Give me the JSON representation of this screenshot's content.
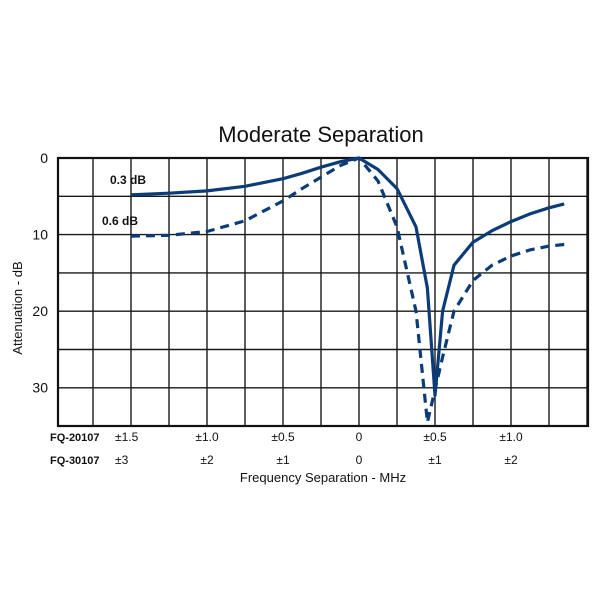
{
  "chart_data": {
    "type": "line",
    "title": "Moderate Separation",
    "xlabel": "Frequency Separation - MHz",
    "ylabel": "Attenuation - dB",
    "y_inverted": true,
    "ylim": [
      0,
      35
    ],
    "yticks": [
      "0",
      "10",
      "20",
      "30"
    ],
    "yticks_values": [
      0,
      10,
      20,
      30
    ],
    "grid": true,
    "x_scale_rows": [
      {
        "label": "FQ-20107",
        "ticks": [
          "±1.5",
          "±1.0",
          "±0.5",
          "0",
          "±0.5",
          "±1.0"
        ],
        "values": [
          -1.5,
          -1.0,
          -0.5,
          0,
          0.5,
          1.0
        ]
      },
      {
        "label": "FQ-30107",
        "ticks": [
          "±3",
          "±2",
          "±1",
          "0",
          "±1",
          "±2"
        ],
        "values": [
          -3,
          -2,
          -1,
          0,
          1,
          2
        ]
      }
    ],
    "xlim_row1": [
      -1.5,
      1.35
    ],
    "series": [
      {
        "name": "0.3 dB",
        "style": "solid",
        "color": "#0b3c78",
        "points": [
          [
            -1.5,
            4.8
          ],
          [
            -1.25,
            4.6
          ],
          [
            -1.0,
            4.3
          ],
          [
            -0.75,
            3.7
          ],
          [
            -0.5,
            2.7
          ],
          [
            -0.375,
            2.0
          ],
          [
            -0.25,
            1.2
          ],
          [
            -0.125,
            0.5
          ],
          [
            0.0,
            0.0
          ],
          [
            0.125,
            1.5
          ],
          [
            0.25,
            4.0
          ],
          [
            0.375,
            9.0
          ],
          [
            0.45,
            17.0
          ],
          [
            0.5,
            31.0
          ],
          [
            0.55,
            20.0
          ],
          [
            0.625,
            14.0
          ],
          [
            0.75,
            11.0
          ],
          [
            0.875,
            9.5
          ],
          [
            1.0,
            8.3
          ],
          [
            1.125,
            7.3
          ],
          [
            1.25,
            6.5
          ],
          [
            1.35,
            6.0
          ]
        ]
      },
      {
        "name": "0.6 dB",
        "style": "dashed",
        "color": "#0b3c78",
        "points": [
          [
            -1.5,
            10.2
          ],
          [
            -1.25,
            10.1
          ],
          [
            -1.0,
            9.6
          ],
          [
            -0.75,
            8.2
          ],
          [
            -0.5,
            5.6
          ],
          [
            -0.375,
            4.0
          ],
          [
            -0.25,
            2.5
          ],
          [
            -0.125,
            1.0
          ],
          [
            0.0,
            0.0
          ],
          [
            0.125,
            3.0
          ],
          [
            0.25,
            9.0
          ],
          [
            0.375,
            20.0
          ],
          [
            0.45,
            34.5
          ],
          [
            0.55,
            26.0
          ],
          [
            0.625,
            20.0
          ],
          [
            0.75,
            16.0
          ],
          [
            0.875,
            14.0
          ],
          [
            1.0,
            12.8
          ],
          [
            1.125,
            12.0
          ],
          [
            1.25,
            11.5
          ],
          [
            1.35,
            11.3
          ]
        ]
      }
    ],
    "series_labels": [
      "0.3 dB",
      "0.6 dB"
    ]
  }
}
